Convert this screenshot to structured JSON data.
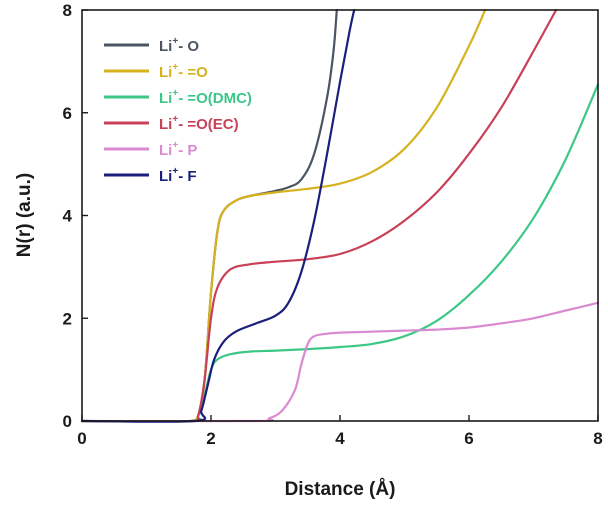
{
  "chart_data": {
    "type": "line",
    "xlabel": "Distance (Å)",
    "ylabel": "N(r) (a.u.)",
    "xlim": [
      0,
      8
    ],
    "ylim": [
      0,
      8
    ],
    "xticks": [
      "0",
      "2",
      "4",
      "6",
      "8"
    ],
    "yticks": [
      "0",
      "2",
      "4",
      "6",
      "8"
    ],
    "grid": false,
    "legend_position": "top-left",
    "series": [
      {
        "name": "Li⁺- O",
        "label_main": "Li",
        "label_sup": "+",
        "label_rest": "- O",
        "color": "#4a5462",
        "x": [
          1.7,
          1.8,
          1.9,
          2.0,
          2.1,
          2.2,
          2.4,
          2.6,
          2.8,
          3.0,
          3.2,
          3.4,
          3.6,
          3.8,
          3.9,
          3.95
        ],
        "y": [
          0,
          0.1,
          0.8,
          2.5,
          3.7,
          4.1,
          4.3,
          4.38,
          4.43,
          4.48,
          4.55,
          4.7,
          5.2,
          6.3,
          7.2,
          8.0
        ]
      },
      {
        "name": "Li⁺- =O",
        "label_main": "Li",
        "label_sup": "+",
        "label_rest": "- =O",
        "color": "#d6b21d",
        "x": [
          1.7,
          1.8,
          1.9,
          2.0,
          2.1,
          2.2,
          2.4,
          2.6,
          3.0,
          3.5,
          4.0,
          4.5,
          5.0,
          5.5,
          6.0,
          6.25
        ],
        "y": [
          0,
          0.1,
          0.8,
          2.5,
          3.7,
          4.1,
          4.3,
          4.38,
          4.45,
          4.52,
          4.62,
          4.85,
          5.3,
          6.1,
          7.3,
          8.0
        ]
      },
      {
        "name": "Li⁺- =O(DMC)",
        "label_main": "Li",
        "label_sup": "+",
        "label_rest": "- =O(DMC)",
        "color": "#3dc787",
        "x": [
          0,
          1.7,
          1.8,
          1.9,
          2.0,
          2.1,
          2.3,
          2.6,
          3.0,
          3.5,
          4.0,
          4.5,
          5.0,
          5.5,
          6.0,
          6.5,
          7.0,
          7.5,
          8.0
        ],
        "y": [
          0,
          0,
          0.1,
          0.5,
          1.0,
          1.2,
          1.3,
          1.35,
          1.37,
          1.4,
          1.44,
          1.5,
          1.65,
          1.95,
          2.45,
          3.1,
          3.95,
          5.1,
          6.55
        ]
      },
      {
        "name": "Li⁺- =O(EC)",
        "label_main": "Li",
        "label_sup": "+",
        "label_rest": "- =O(EC)",
        "color": "#c84158",
        "x": [
          0,
          1.7,
          1.8,
          1.9,
          2.0,
          2.1,
          2.3,
          2.6,
          3.0,
          3.5,
          4.0,
          4.5,
          5.0,
          5.5,
          6.0,
          6.5,
          7.0,
          7.35
        ],
        "y": [
          0,
          0,
          0.1,
          0.8,
          2.0,
          2.6,
          2.95,
          3.05,
          3.1,
          3.15,
          3.25,
          3.5,
          3.9,
          4.45,
          5.2,
          6.1,
          7.2,
          8.0
        ]
      },
      {
        "name": "Li⁺- P",
        "label_main": "Li",
        "label_sup": "+",
        "label_rest": "- P",
        "color": "#d98ad0",
        "x": [
          0,
          2.7,
          2.9,
          3.1,
          3.3,
          3.4,
          3.5,
          3.6,
          3.8,
          4.0,
          4.5,
          5.0,
          5.5,
          6.0,
          6.5,
          7.0,
          7.5,
          8.0
        ],
        "y": [
          0,
          0,
          0.05,
          0.2,
          0.6,
          1.1,
          1.5,
          1.65,
          1.7,
          1.72,
          1.74,
          1.76,
          1.78,
          1.82,
          1.9,
          2.0,
          2.15,
          2.3
        ]
      },
      {
        "name": "Li⁺- F",
        "label_main": "Li",
        "label_sup": "+",
        "label_rest": "- F",
        "color": "#1a1f7c",
        "x": [
          0,
          1.75,
          1.85,
          1.95,
          2.05,
          2.2,
          2.4,
          2.7,
          3.0,
          3.2,
          3.4,
          3.6,
          3.8,
          4.0,
          4.15,
          4.22
        ],
        "y": [
          0,
          0,
          0.2,
          0.7,
          1.2,
          1.55,
          1.75,
          1.9,
          2.05,
          2.3,
          2.9,
          3.9,
          5.2,
          6.6,
          7.6,
          8.0
        ]
      }
    ]
  }
}
